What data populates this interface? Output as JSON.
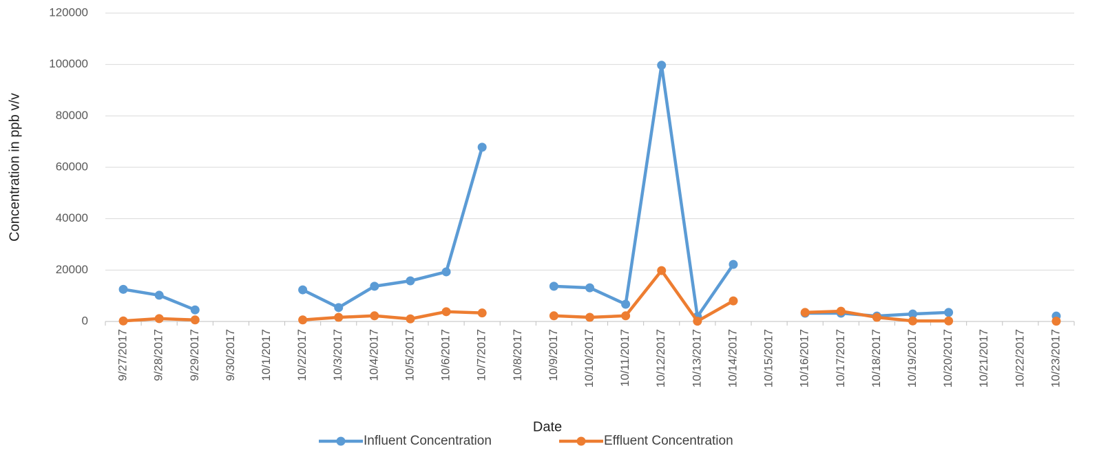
{
  "chart_data": {
    "type": "line",
    "x_label": "Date",
    "y_label": "Concentration in ppb v/v",
    "categories": [
      "9/27/2017",
      "9/28/2017",
      "9/29/2017",
      "9/30/2017",
      "10/1/2017",
      "10/2/2017",
      "10/3/2017",
      "10/4/2017",
      "10/5/2017",
      "10/6/2017",
      "10/7/2017",
      "10/8/2017",
      "10/9/2017",
      "10/10/2017",
      "10/11/2017",
      "10/12/2017",
      "10/13/2017",
      "10/14/2017",
      "10/15/2017",
      "10/16/2017",
      "10/17/2017",
      "10/18/2017",
      "10/19/2017",
      "10/20/2017",
      "10/21/2017",
      "10/22/2017",
      "10/23/2017"
    ],
    "series": [
      {
        "name": "Influent Concentration",
        "color": "#5b9bd5",
        "values": [
          12500,
          10200,
          4500,
          null,
          null,
          12300,
          5400,
          13700,
          15800,
          19300,
          67800,
          null,
          13700,
          13100,
          6700,
          99700,
          1900,
          22200,
          null,
          3200,
          3200,
          2100,
          2900,
          3500,
          null,
          null,
          2100
        ]
      },
      {
        "name": "Effluent Concentration",
        "color": "#ed7d31",
        "values": [
          200,
          1100,
          600,
          null,
          null,
          600,
          1600,
          2200,
          1000,
          3800,
          3300,
          null,
          2200,
          1600,
          2200,
          19800,
          100,
          8000,
          null,
          3500,
          4000,
          1600,
          200,
          200,
          null,
          null,
          100
        ]
      }
    ],
    "ylim": [
      0,
      120000
    ],
    "yticks": [
      0,
      20000,
      40000,
      60000,
      80000,
      100000,
      120000
    ],
    "grid": true,
    "legend": "bottom"
  }
}
